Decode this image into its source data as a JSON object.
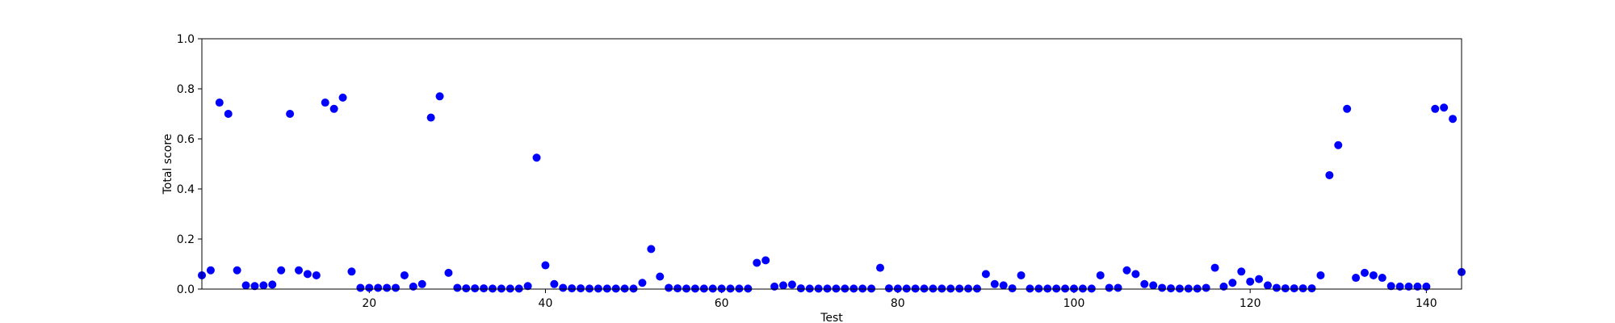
{
  "chart_data": {
    "type": "scatter",
    "xlabel": "Test",
    "ylabel": "Total score",
    "xlim": [
      1,
      144
    ],
    "ylim": [
      0.0,
      1.0
    ],
    "xticks": [
      20,
      40,
      60,
      80,
      100,
      120,
      140
    ],
    "yticks": [
      0.0,
      0.2,
      0.4,
      0.6,
      0.8,
      1.0
    ],
    "xtick_labels": [
      "20",
      "40",
      "60",
      "80",
      "100",
      "120",
      "140"
    ],
    "ytick_labels": [
      "0.0",
      "0.2",
      "0.4",
      "0.6",
      "0.8",
      "1.0"
    ],
    "grid": false,
    "marker_color": "#0000ff",
    "points": {
      "x": [
        1,
        2,
        3,
        4,
        5,
        6,
        7,
        8,
        9,
        10,
        11,
        12,
        13,
        14,
        15,
        16,
        17,
        18,
        19,
        20,
        21,
        22,
        23,
        24,
        25,
        26,
        27,
        28,
        29,
        30,
        31,
        32,
        33,
        34,
        35,
        36,
        37,
        38,
        39,
        40,
        41,
        42,
        43,
        44,
        45,
        46,
        47,
        48,
        49,
        50,
        51,
        52,
        53,
        54,
        55,
        56,
        57,
        58,
        59,
        60,
        61,
        62,
        63,
        64,
        65,
        66,
        67,
        68,
        69,
        70,
        71,
        72,
        73,
        74,
        75,
        76,
        77,
        78,
        79,
        80,
        81,
        82,
        83,
        84,
        85,
        86,
        87,
        88,
        89,
        90,
        91,
        92,
        93,
        94,
        95,
        96,
        97,
        98,
        99,
        100,
        101,
        102,
        103,
        104,
        105,
        106,
        107,
        108,
        109,
        110,
        111,
        112,
        113,
        114,
        115,
        116,
        117,
        118,
        119,
        120,
        121,
        122,
        123,
        124,
        125,
        126,
        127,
        128,
        129,
        130,
        131,
        132,
        133,
        134,
        135,
        136,
        137,
        138,
        139,
        140,
        141,
        142,
        143,
        144
      ],
      "y": [
        0.055,
        0.075,
        0.745,
        0.7,
        0.075,
        0.015,
        0.012,
        0.015,
        0.018,
        0.075,
        0.7,
        0.075,
        0.06,
        0.055,
        0.745,
        0.72,
        0.765,
        0.07,
        0.005,
        0.005,
        0.005,
        0.005,
        0.005,
        0.055,
        0.01,
        0.02,
        0.685,
        0.77,
        0.065,
        0.005,
        0.003,
        0.003,
        0.003,
        0.002,
        0.002,
        0.002,
        0.002,
        0.012,
        0.525,
        0.095,
        0.02,
        0.005,
        0.003,
        0.003,
        0.002,
        0.002,
        0.002,
        0.002,
        0.002,
        0.002,
        0.025,
        0.16,
        0.05,
        0.005,
        0.003,
        0.002,
        0.002,
        0.002,
        0.002,
        0.002,
        0.002,
        0.002,
        0.002,
        0.105,
        0.115,
        0.01,
        0.015,
        0.018,
        0.003,
        0.002,
        0.002,
        0.002,
        0.002,
        0.002,
        0.002,
        0.002,
        0.002,
        0.085,
        0.003,
        0.002,
        0.002,
        0.002,
        0.002,
        0.002,
        0.002,
        0.002,
        0.002,
        0.002,
        0.002,
        0.06,
        0.02,
        0.015,
        0.003,
        0.055,
        0.002,
        0.002,
        0.002,
        0.002,
        0.002,
        0.002,
        0.002,
        0.002,
        0.055,
        0.005,
        0.005,
        0.075,
        0.06,
        0.02,
        0.015,
        0.005,
        0.003,
        0.002,
        0.002,
        0.002,
        0.005,
        0.085,
        0.01,
        0.025,
        0.07,
        0.03,
        0.04,
        0.015,
        0.005,
        0.003,
        0.003,
        0.003,
        0.003,
        0.055,
        0.455,
        0.575,
        0.72,
        0.045,
        0.065,
        0.055,
        0.045,
        0.012,
        0.01,
        0.01,
        0.01,
        0.01,
        0.72,
        0.725,
        0.68,
        0.068
      ]
    }
  }
}
